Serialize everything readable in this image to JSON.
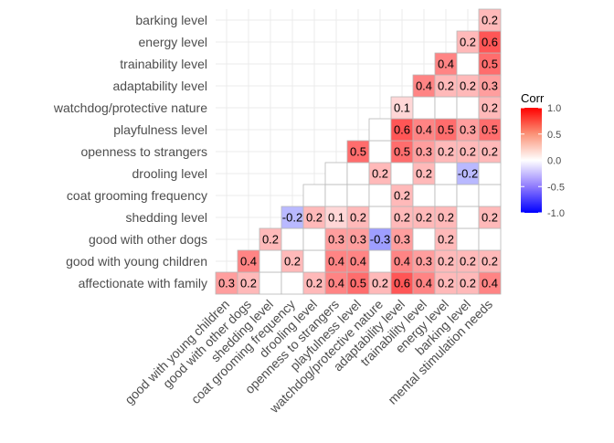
{
  "chart_data": {
    "type": "heatmap",
    "title": "",
    "xlabel": "",
    "ylabel": "",
    "x_categories": [
      "good with young children",
      "good with other dogs",
      "shedding level",
      "coat grooming frequency",
      "drooling level",
      "openness to strangers",
      "playfulness level",
      "watchdog/protective nature",
      "adaptability level",
      "trainability level",
      "energy level",
      "barking level",
      "mental stimulation needs"
    ],
    "y_categories": [
      "affectionate with family",
      "good with young children",
      "good with other dogs",
      "shedding level",
      "coat grooming frequency",
      "drooling level",
      "openness to strangers",
      "playfulness level",
      "watchdog/protective nature",
      "adaptability level",
      "trainability level",
      "energy level",
      "barking level"
    ],
    "matrix": [
      [
        0.3,
        0.2,
        null,
        null,
        0.2,
        0.4,
        0.5,
        0.2,
        0.6,
        0.4,
        0.2,
        0.2,
        0.4
      ],
      [
        null,
        0.4,
        null,
        0.2,
        null,
        0.4,
        0.4,
        null,
        0.4,
        0.3,
        0.2,
        0.2,
        0.2
      ],
      [
        null,
        null,
        0.2,
        null,
        null,
        0.3,
        0.3,
        -0.3,
        0.3,
        null,
        0.2,
        null,
        null
      ],
      [
        null,
        null,
        null,
        -0.2,
        0.2,
        0.1,
        0.2,
        null,
        0.2,
        0.2,
        0.2,
        null,
        0.2
      ],
      [
        null,
        null,
        null,
        null,
        null,
        null,
        null,
        null,
        0.2,
        null,
        null,
        null,
        null
      ],
      [
        null,
        null,
        null,
        null,
        null,
        null,
        null,
        0.2,
        null,
        0.2,
        null,
        -0.2,
        null
      ],
      [
        null,
        null,
        null,
        null,
        null,
        null,
        0.5,
        null,
        0.5,
        0.3,
        0.2,
        0.2,
        0.2
      ],
      [
        null,
        null,
        null,
        null,
        null,
        null,
        null,
        null,
        0.6,
        0.4,
        0.5,
        0.3,
        0.5
      ],
      [
        null,
        null,
        null,
        null,
        null,
        null,
        null,
        null,
        0.1,
        null,
        null,
        null,
        0.2
      ],
      [
        null,
        null,
        null,
        null,
        null,
        null,
        null,
        null,
        null,
        0.4,
        0.2,
        0.2,
        0.3
      ],
      [
        null,
        null,
        null,
        null,
        null,
        null,
        null,
        null,
        null,
        null,
        0.4,
        null,
        0.5
      ],
      [
        null,
        null,
        null,
        null,
        null,
        null,
        null,
        null,
        null,
        null,
        null,
        0.2,
        0.6
      ],
      [
        null,
        null,
        null,
        null,
        null,
        null,
        null,
        null,
        null,
        null,
        null,
        null,
        0.2
      ]
    ],
    "legend": {
      "title": "Corr",
      "min": -1.0,
      "max": 1.0,
      "ticks": [
        "1.0",
        "0.5",
        "0.0",
        "-0.5",
        "-1.0"
      ],
      "tick_values": [
        1.0,
        0.5,
        0.0,
        -0.5,
        -1.0
      ],
      "colors": {
        "low": "#0000ff",
        "mid": "#ffffff",
        "high": "#ff0000"
      },
      "position": "right"
    },
    "grid": true
  }
}
